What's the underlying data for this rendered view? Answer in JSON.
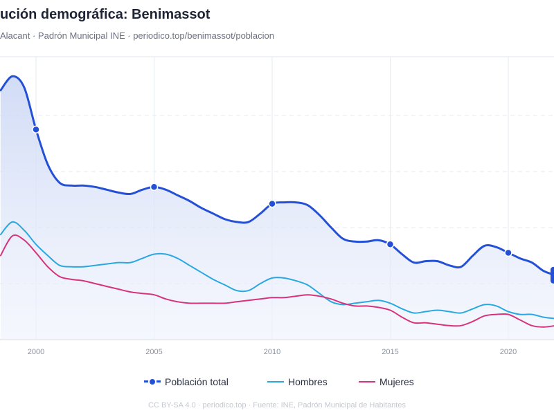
{
  "header": {
    "title": "ución demográfica: Benimassot",
    "subtitle": "Alacant · Padrón Municipal INE · periodico.top/benimassot/poblacion"
  },
  "legend": {
    "total": "Población total",
    "hombres": "Hombres",
    "mujeres": "Mujeres"
  },
  "footer": {
    "text": "CC BY-SA 4.0 · periodico.top · Fuente: INE, Padrón Municipal de Habitantes"
  },
  "colors": {
    "total": "#2450d6",
    "hombres": "#29a8e0",
    "mujeres": "#d6337a",
    "area": "#d9e1f7"
  },
  "chart_data": {
    "type": "line",
    "title": "ución demográfica: Benimassot",
    "x_ticks": [
      2000,
      2005,
      2010,
      2015,
      2020
    ],
    "xlim": [
      1998.5,
      2022
    ],
    "ylim": [
      0,
      200
    ],
    "grid": true,
    "legend_position": "bottom",
    "x": [
      1998.5,
      1999,
      1999.5,
      2000,
      2000.5,
      2001,
      2001.5,
      2002,
      2002.5,
      2003,
      2003.5,
      2004,
      2004.5,
      2005,
      2005.5,
      2006,
      2006.5,
      2007,
      2007.5,
      2008,
      2008.5,
      2009,
      2009.5,
      2010,
      2010.5,
      2011,
      2011.5,
      2012,
      2012.5,
      2013,
      2013.5,
      2014,
      2014.5,
      2015,
      2015.5,
      2016,
      2016.5,
      2017,
      2017.5,
      2018,
      2018.5,
      2019,
      2019.5,
      2020,
      2020.5,
      2021,
      2021.5,
      2022
    ],
    "series": [
      {
        "name": "Población total",
        "values": [
          178,
          188,
          180,
          150,
          125,
          112,
          110,
          110,
          109,
          107,
          105,
          104,
          107,
          109,
          107,
          103,
          99,
          94,
          90,
          86,
          84,
          84,
          90,
          97,
          98,
          98,
          96,
          89,
          80,
          72,
          70,
          70,
          71,
          68,
          61,
          55,
          56,
          56,
          53,
          52,
          60,
          67,
          66,
          62,
          58,
          55,
          49,
          46
        ],
        "markers": [
          2000,
          2005,
          2010,
          2015,
          2020
        ]
      },
      {
        "name": "Hombres",
        "values": [
          75,
          84,
          78,
          68,
          60,
          53,
          52,
          52,
          53,
          54,
          55,
          55,
          58,
          61,
          61,
          58,
          53,
          48,
          43,
          39,
          35,
          35,
          40,
          44,
          44,
          42,
          39,
          33,
          27,
          25,
          26,
          27,
          28,
          26,
          22,
          19,
          20,
          21,
          20,
          19,
          22,
          25,
          24,
          20,
          18,
          18,
          16,
          15
        ]
      },
      {
        "name": "Mujeres",
        "values": [
          60,
          74,
          71,
          62,
          52,
          45,
          43,
          42,
          40,
          38,
          36,
          34,
          33,
          32,
          29,
          27,
          26,
          26,
          26,
          26,
          27,
          28,
          29,
          30,
          30,
          31,
          32,
          31,
          29,
          26,
          24,
          24,
          23,
          21,
          16,
          12,
          12,
          11,
          10,
          10,
          13,
          17,
          18,
          18,
          14,
          10,
          9,
          10
        ]
      }
    ]
  }
}
